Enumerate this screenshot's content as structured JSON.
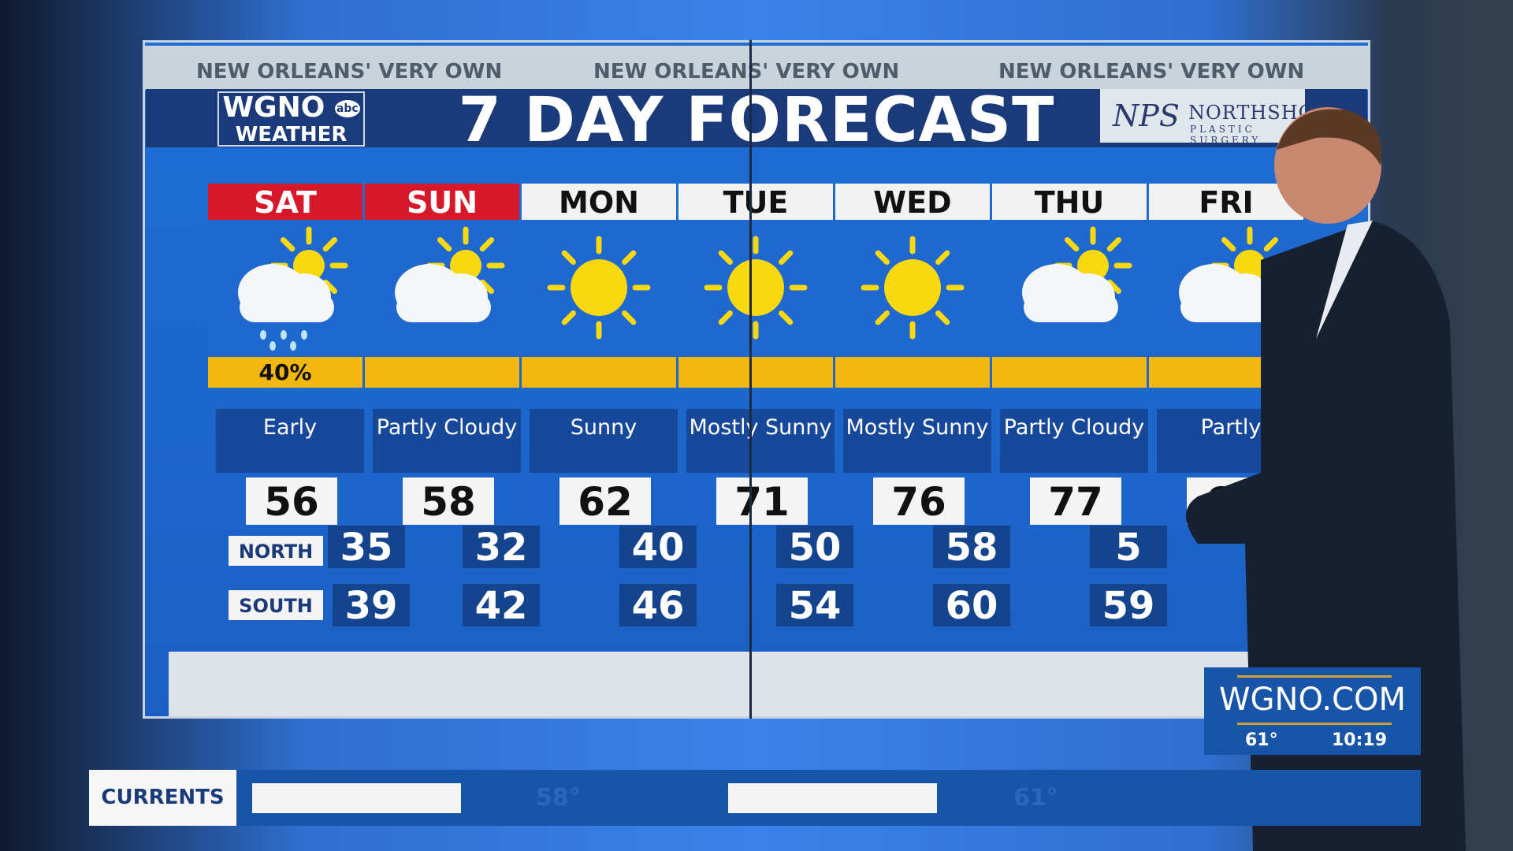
{
  "banner": {
    "tagline": [
      "NEW ORLEANS' VERY OWN",
      "NEW ORLEANS' VERY OWN",
      "NEW ORLEANS' VERY OWN"
    ],
    "title": "7 DAY FORECAST"
  },
  "logo": {
    "line1": "WGNO",
    "badge": "abc",
    "line2": "WEATHER"
  },
  "sponsor": {
    "mark": "NPS",
    "name": "NORTHSHORE",
    "sub": "PLASTIC SURGERY"
  },
  "days": [
    {
      "name": "SAT",
      "weekend": true,
      "icon": "partly-cloudy-rain-icon",
      "rain": "40%",
      "condition": "Early",
      "high": "56",
      "north": "35",
      "south": "39"
    },
    {
      "name": "SUN",
      "weekend": true,
      "icon": "partly-cloudy-icon",
      "rain": "",
      "condition": "Partly Cloudy",
      "high": "58",
      "north": "32",
      "south": "42"
    },
    {
      "name": "MON",
      "weekend": false,
      "icon": "sun-icon",
      "rain": "",
      "condition": "Sunny",
      "high": "62",
      "north": "40",
      "south": "46"
    },
    {
      "name": "TUE",
      "weekend": false,
      "icon": "sun-icon",
      "rain": "",
      "condition": "Mostly Sunny",
      "high": "71",
      "north": "50",
      "south": "54"
    },
    {
      "name": "WED",
      "weekend": false,
      "icon": "sun-icon",
      "rain": "",
      "condition": "Mostly Sunny",
      "high": "76",
      "north": "58",
      "south": "60"
    },
    {
      "name": "THU",
      "weekend": false,
      "icon": "partly-cloudy-icon",
      "rain": "",
      "condition": "Partly Cloudy",
      "high": "77",
      "north": "5",
      "south": "59"
    },
    {
      "name": "FRI",
      "weekend": false,
      "icon": "partly-cloudy-icon",
      "rain": "",
      "condition": "Partly",
      "high": "67",
      "north": "",
      "south": ""
    }
  ],
  "labels": {
    "north": "NORTH",
    "south": "SOUTH"
  },
  "lower_third": {
    "label": "CURRENTS",
    "ghost_temps": [
      "58°",
      "61°"
    ]
  },
  "bug": {
    "site": "WGNO.COM",
    "temp": "61°",
    "time": "10:19"
  },
  "colors": {
    "weekend": "#d7182a",
    "bar": "#f3b810",
    "board": "#1f6fd6",
    "navy": "#1b3a7a"
  }
}
